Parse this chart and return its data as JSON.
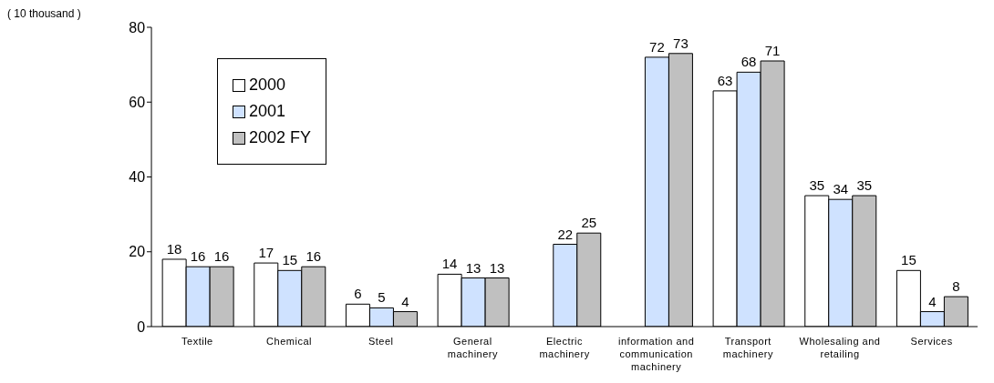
{
  "chart_data": {
    "type": "bar",
    "ylabel": "( 10 thousand )",
    "categories": [
      "Textile",
      "Chemical",
      "Steel",
      "General machinery",
      "Electric machinery",
      "information and communication machinery",
      "Transport machinery",
      "Wholesaling and retailing",
      "Services"
    ],
    "series": [
      {
        "name": "2000",
        "color": "#ffffff",
        "values": [
          18,
          17,
          6,
          14,
          null,
          null,
          63,
          35,
          15
        ]
      },
      {
        "name": "2001",
        "color": "#cfe2ff",
        "values": [
          16,
          15,
          5,
          13,
          22,
          72,
          68,
          34,
          4
        ]
      },
      {
        "name": "2002 FY",
        "color": "#c0c0c0",
        "values": [
          16,
          16,
          4,
          13,
          25,
          73,
          71,
          35,
          8
        ]
      }
    ],
    "ylim": [
      0,
      80
    ],
    "yticks": [
      0,
      20,
      40,
      60,
      80
    ],
    "grid": false,
    "legend": "top left",
    "data_labels": true
  }
}
